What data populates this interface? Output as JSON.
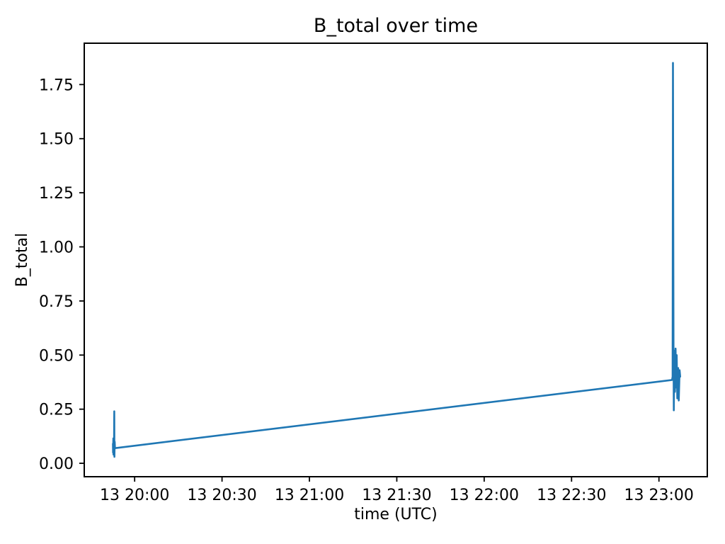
{
  "figure": {
    "background_color": "#ffffff",
    "spine_color": "#000000",
    "text_color": "#000000"
  },
  "chart_data": {
    "type": "line",
    "title": "B_total over time",
    "xlabel": "time (UTC)",
    "ylabel": "B_total",
    "line_color": "#1f77b4",
    "legend": "none",
    "grid": false,
    "x_unit": "minutes after 13 19:00 UTC",
    "xlim": [
      42.7,
      256.6
    ],
    "ylim": [
      -0.062,
      1.941
    ],
    "x_ticks": [
      {
        "t": 60,
        "label": "13 20:00"
      },
      {
        "t": 90,
        "label": "13 20:30"
      },
      {
        "t": 120,
        "label": "13 21:00"
      },
      {
        "t": 150,
        "label": "13 21:30"
      },
      {
        "t": 180,
        "label": "13 22:00"
      },
      {
        "t": 210,
        "label": "13 22:30"
      },
      {
        "t": 240,
        "label": "13 23:00"
      }
    ],
    "y_ticks": [
      {
        "v": 0.0,
        "label": "0.00"
      },
      {
        "v": 0.25,
        "label": "0.25"
      },
      {
        "v": 0.5,
        "label": "0.50"
      },
      {
        "v": 0.75,
        "label": "0.75"
      },
      {
        "v": 1.0,
        "label": "1.00"
      },
      {
        "v": 1.25,
        "label": "1.25"
      },
      {
        "v": 1.5,
        "label": "1.50"
      },
      {
        "v": 1.75,
        "label": "1.75"
      }
    ],
    "series": [
      {
        "name": "B_total",
        "points": [
          [
            52.55,
            0.09
          ],
          [
            52.6,
            0.05
          ],
          [
            52.7,
            0.115
          ],
          [
            52.75,
            0.04
          ],
          [
            52.85,
            0.11
          ],
          [
            52.9,
            0.06
          ],
          [
            53.0,
            0.24
          ],
          [
            53.05,
            0.03
          ],
          [
            53.15,
            0.1
          ],
          [
            53.25,
            0.07
          ],
          [
            244.5,
            0.385
          ],
          [
            244.7,
            0.4
          ],
          [
            244.8,
            1.85
          ],
          [
            245.0,
            0.5
          ],
          [
            245.1,
            0.245
          ],
          [
            245.3,
            0.52
          ],
          [
            245.5,
            0.33
          ],
          [
            245.7,
            0.53
          ],
          [
            245.9,
            0.35
          ],
          [
            246.1,
            0.5
          ],
          [
            246.3,
            0.3
          ],
          [
            246.6,
            0.44
          ],
          [
            246.8,
            0.29
          ],
          [
            247.1,
            0.43
          ],
          [
            247.3,
            0.4
          ]
        ]
      }
    ]
  }
}
